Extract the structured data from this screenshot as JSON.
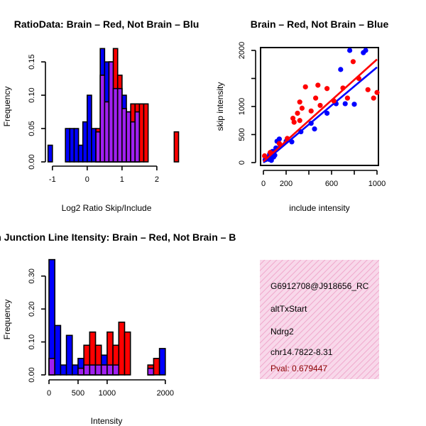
{
  "colors": {
    "brain": "#ff0000",
    "not_brain": "#0000ff",
    "overlap": "#a020f0",
    "panel_bg": "#f8d8ea",
    "panel_stripe": "#f0a8cc",
    "pval": "#8b0000"
  },
  "chart_data": [
    {
      "type": "bar",
      "id": "ratio-hist",
      "title": "RatioData: Brain – Red, Not Brain – Blu",
      "xlabel": "Log2 Ratio Skip/Include",
      "ylabel": "Frequency",
      "xlim": [
        -1.2,
        2.9
      ],
      "ylim": [
        0,
        0.18
      ],
      "xticks": [
        -1,
        0,
        1,
        2
      ],
      "yticks": [
        0.0,
        0.05,
        0.1,
        0.15
      ],
      "ytick_labels": [
        "0.00",
        "0.05",
        "0.10",
        "0.15"
      ],
      "bin_width": 0.125,
      "bin_starts": [
        -1.125,
        -0.625,
        -0.5,
        -0.375,
        -0.25,
        -0.125,
        0.0,
        0.125,
        0.25,
        0.375,
        0.5,
        0.625,
        0.75,
        0.875,
        1.0,
        1.125,
        1.25,
        1.375,
        1.5,
        1.625,
        1.75,
        2.5
      ],
      "series": [
        {
          "name": "Not Brain",
          "color": "not_brain",
          "values": [
            0.025,
            0.05,
            0.05,
            0.05,
            0.025,
            0.06,
            0.1,
            0.05,
            0.045,
            0.17,
            0.15,
            0.15,
            0.11,
            0.11,
            0.1,
            0.075,
            0.06,
            0.075,
            0.0,
            0.0,
            0.0,
            0.0
          ]
        },
        {
          "name": "Brain",
          "color": "brain",
          "values": [
            0.0,
            0.0,
            0.0,
            0.0,
            0.0,
            0.0,
            0.0,
            0.0,
            0.05,
            0.13,
            0.09,
            0.15,
            0.17,
            0.13,
            0.08,
            0.075,
            0.087,
            0.087,
            0.087,
            0.087,
            0.0,
            0.045
          ]
        }
      ]
    },
    {
      "type": "scatter",
      "id": "intensity-scatter",
      "title": "Brain – Red, Not Brain – Blue",
      "xlabel": "include intensity",
      "ylabel": "skip intensity",
      "xlim": [
        0,
        1000
      ],
      "ylim": [
        0,
        2100
      ],
      "xticks": [
        0,
        200,
        600,
        1000
      ],
      "yticks": [
        0,
        500,
        1000,
        2000
      ],
      "series": [
        {
          "name": "Not Brain",
          "color": "not_brain",
          "points": [
            [
              15,
              50
            ],
            [
              30,
              90
            ],
            [
              45,
              60
            ],
            [
              55,
              150
            ],
            [
              60,
              120
            ],
            [
              70,
              40
            ],
            [
              80,
              200
            ],
            [
              90,
              100
            ],
            [
              100,
              130
            ],
            [
              110,
              260
            ],
            [
              120,
              380
            ],
            [
              140,
              420
            ],
            [
              150,
              300
            ],
            [
              200,
              380
            ],
            [
              250,
              370
            ],
            [
              330,
              550
            ],
            [
              420,
              700
            ],
            [
              450,
              600
            ],
            [
              560,
              880
            ],
            [
              640,
              1050
            ],
            [
              680,
              1660
            ],
            [
              720,
              1050
            ],
            [
              760,
              2000
            ],
            [
              800,
              1040
            ],
            [
              880,
              1960
            ],
            [
              900,
              2000
            ]
          ],
          "fit": [
            [
              0,
              0
            ],
            [
              1000,
              1700
            ]
          ]
        },
        {
          "name": "Brain",
          "color": "brain",
          "points": [
            [
              10,
              120
            ],
            [
              60,
              180
            ],
            [
              140,
              340
            ],
            [
              210,
              430
            ],
            [
              260,
              790
            ],
            [
              270,
              720
            ],
            [
              300,
              880
            ],
            [
              320,
              750
            ],
            [
              320,
              1080
            ],
            [
              340,
              970
            ],
            [
              370,
              1350
            ],
            [
              420,
              920
            ],
            [
              460,
              1150
            ],
            [
              480,
              1380
            ],
            [
              500,
              1020
            ],
            [
              560,
              1320
            ],
            [
              620,
              1100
            ],
            [
              700,
              1330
            ],
            [
              740,
              1150
            ],
            [
              790,
              1800
            ],
            [
              840,
              1500
            ],
            [
              920,
              1300
            ],
            [
              970,
              1150
            ],
            [
              1000,
              1250
            ]
          ],
          "fit": [
            [
              0,
              20
            ],
            [
              1000,
              1840
            ]
          ]
        }
      ]
    },
    {
      "type": "bar",
      "id": "intensity-hist",
      "title": "Exon Junction Line Itensity: Brain – Red, Not Brain – B",
      "xlabel": "Intensity",
      "ylabel": "Frequency",
      "xlim": [
        0,
        2100
      ],
      "ylim": [
        0,
        0.36
      ],
      "xticks": [
        0,
        500,
        1000,
        2000
      ],
      "yticks": [
        0.0,
        0.1,
        0.2,
        0.3
      ],
      "ytick_labels": [
        "0.00",
        "0.10",
        "0.20",
        "0.30"
      ],
      "bin_width": 100,
      "bin_starts": [
        0,
        100,
        200,
        300,
        400,
        500,
        600,
        700,
        800,
        900,
        1000,
        1100,
        1200,
        1300,
        1400,
        1500,
        1600,
        1700,
        1800,
        1900
      ],
      "series": [
        {
          "name": "Not Brain",
          "color": "not_brain",
          "values": [
            0.35,
            0.15,
            0.03,
            0.12,
            0.03,
            0.05,
            0.03,
            0.03,
            0.03,
            0.06,
            0.03,
            0.03,
            0.0,
            0.0,
            0.0,
            0.0,
            0.0,
            0.02,
            0.0,
            0.08
          ]
        },
        {
          "name": "Brain",
          "color": "brain",
          "values": [
            0.05,
            0.0,
            0.0,
            0.0,
            0.0,
            0.02,
            0.09,
            0.13,
            0.09,
            0.03,
            0.13,
            0.09,
            0.16,
            0.13,
            0.0,
            0.0,
            0.0,
            0.03,
            0.05,
            0.0
          ]
        }
      ]
    }
  ],
  "info_panel": {
    "probe_id": "G6912708@J918656_RC",
    "event_type": "altTxStart",
    "gene": "Ndrg2",
    "location": "chr14.7822-8.31",
    "pval": "Pval: 0.679447"
  }
}
